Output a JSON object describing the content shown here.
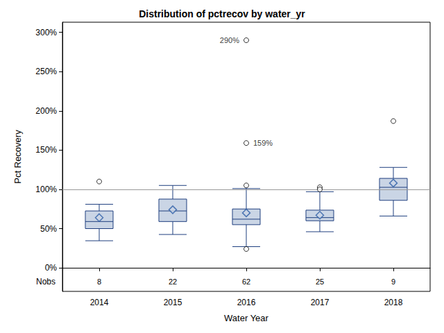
{
  "chart_data": {
    "type": "boxplot",
    "title": "Distribution of pctrecov by water_yr",
    "x_label": "Water Year",
    "y_label": "Pct Recovery",
    "categories": [
      "2014",
      "2015",
      "2016",
      "2017",
      "2018"
    ],
    "boxes": [
      [
        34.5,
        50,
        59,
        72.5,
        81
      ],
      [
        42.5,
        59,
        72.5,
        87.6,
        105
      ],
      [
        27,
        55,
        62,
        75,
        101
      ],
      [
        46,
        60,
        64,
        73.5,
        97
      ],
      [
        66,
        86,
        102.6,
        114,
        128
      ]
    ],
    "means": [
      64,
      74,
      70,
      67,
      108
    ],
    "outliers": [
      {
        "category": "2014",
        "value": 110
      },
      {
        "category": "2016",
        "value": 290,
        "label": "290%"
      },
      {
        "category": "2016",
        "value": 159,
        "label": "159%"
      },
      {
        "category": "2016",
        "value": 105
      },
      {
        "category": "2016",
        "value": 24
      },
      {
        "category": "2017",
        "value": 102.6
      },
      {
        "category": "2017",
        "value": 100
      },
      {
        "category": "2018",
        "value": 187
      }
    ],
    "nobs_label": "Nobs",
    "nobs": [
      8,
      22,
      62,
      25,
      9
    ],
    "reference_line": 100,
    "color": "#cad5e5",
    "ylim": [
      -30,
      313
    ],
    "yticks": [
      {
        "value": 0,
        "label": "0%"
      },
      {
        "value": 50,
        "label": "50%"
      },
      {
        "value": 100,
        "label": "100%"
      },
      {
        "value": 150,
        "label": "150%"
      },
      {
        "value": 200,
        "label": "200%"
      },
      {
        "value": 250,
        "label": "250%"
      },
      {
        "value": 300,
        "label": "300%"
      }
    ],
    "grid": false
  }
}
